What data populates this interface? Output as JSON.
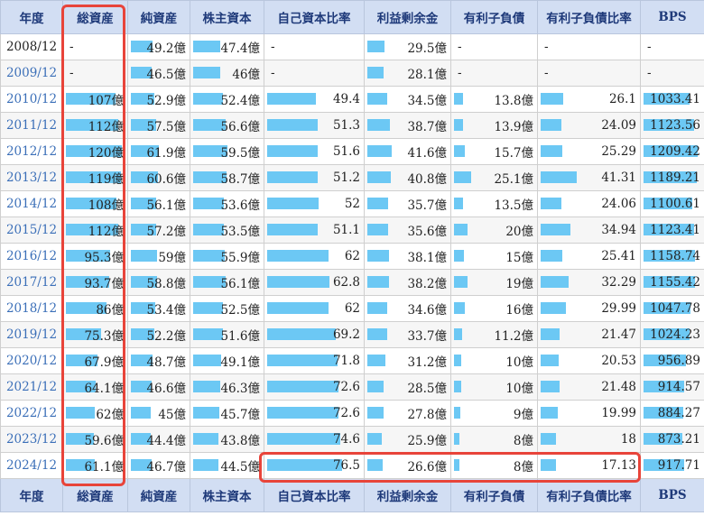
{
  "headers": [
    "年度",
    "総資産",
    "純資産",
    "株主資本",
    "自己資本比率",
    "利益剰余金",
    "有利子負債",
    "有利子負債比率",
    "BPS"
  ],
  "bar_color": "#6cc8f4",
  "highlight_color": "#e8443a",
  "rows": [
    {
      "year": "2008/12",
      "link": false,
      "cells": [
        {
          "text": "-",
          "bar": null
        },
        {
          "text": "49.2億",
          "bar": 0.41
        },
        {
          "text": "47.4億",
          "bar": 0.42
        },
        {
          "text": "-",
          "bar": null
        },
        {
          "text": "29.5億",
          "bar": 0.22
        },
        {
          "text": "-",
          "bar": null
        },
        {
          "text": "-",
          "bar": null
        },
        {
          "text": "-",
          "bar": null
        }
      ]
    },
    {
      "year": "2009/12",
      "link": true,
      "cells": [
        {
          "text": "-",
          "bar": null
        },
        {
          "text": "46.5億",
          "bar": 0.39
        },
        {
          "text": "46億",
          "bar": 0.41
        },
        {
          "text": "-",
          "bar": null
        },
        {
          "text": "28.1億",
          "bar": 0.21
        },
        {
          "text": "-",
          "bar": null
        },
        {
          "text": "-",
          "bar": null
        },
        {
          "text": "-",
          "bar": null
        }
      ]
    },
    {
      "year": "2010/12",
      "link": true,
      "cells": [
        {
          "text": "107億",
          "bar": 0.89
        },
        {
          "text": "52.9億",
          "bar": 0.44
        },
        {
          "text": "52.4億",
          "bar": 0.46
        },
        {
          "text": "49.4",
          "bar": 0.53
        },
        {
          "text": "34.5億",
          "bar": 0.26
        },
        {
          "text": "13.8億",
          "bar": 0.12
        },
        {
          "text": "26.1",
          "bar": 0.24
        },
        {
          "text": "1033.41",
          "bar": 0.84
        }
      ]
    },
    {
      "year": "2011/12",
      "link": true,
      "cells": [
        {
          "text": "112億",
          "bar": 0.93
        },
        {
          "text": "57.5億",
          "bar": 0.48
        },
        {
          "text": "56.6億",
          "bar": 0.5
        },
        {
          "text": "51.3",
          "bar": 0.55
        },
        {
          "text": "38.7億",
          "bar": 0.29
        },
        {
          "text": "13.9億",
          "bar": 0.12
        },
        {
          "text": "24.09",
          "bar": 0.22
        },
        {
          "text": "1123.56",
          "bar": 0.91
        }
      ]
    },
    {
      "year": "2012/12",
      "link": true,
      "cells": [
        {
          "text": "120億",
          "bar": 1.0
        },
        {
          "text": "61.9億",
          "bar": 0.52
        },
        {
          "text": "59.5億",
          "bar": 0.53
        },
        {
          "text": "51.6",
          "bar": 0.55
        },
        {
          "text": "41.6億",
          "bar": 0.31
        },
        {
          "text": "15.7億",
          "bar": 0.14
        },
        {
          "text": "25.29",
          "bar": 0.23
        },
        {
          "text": "1209.42",
          "bar": 0.98
        }
      ]
    },
    {
      "year": "2013/12",
      "link": true,
      "cells": [
        {
          "text": "119億",
          "bar": 0.99
        },
        {
          "text": "60.6億",
          "bar": 0.51
        },
        {
          "text": "58.7億",
          "bar": 0.52
        },
        {
          "text": "51.2",
          "bar": 0.55
        },
        {
          "text": "40.8億",
          "bar": 0.3
        },
        {
          "text": "25.1億",
          "bar": 0.22
        },
        {
          "text": "41.31",
          "bar": 0.38
        },
        {
          "text": "1189.21",
          "bar": 0.96
        }
      ]
    },
    {
      "year": "2014/12",
      "link": true,
      "cells": [
        {
          "text": "108億",
          "bar": 0.9
        },
        {
          "text": "56.1億",
          "bar": 0.47
        },
        {
          "text": "53.6億",
          "bar": 0.47
        },
        {
          "text": "52",
          "bar": 0.56
        },
        {
          "text": "35.7億",
          "bar": 0.27
        },
        {
          "text": "13.5億",
          "bar": 0.12
        },
        {
          "text": "24.06",
          "bar": 0.22
        },
        {
          "text": "1100.61",
          "bar": 0.89
        }
      ]
    },
    {
      "year": "2015/12",
      "link": true,
      "cells": [
        {
          "text": "112億",
          "bar": 0.93
        },
        {
          "text": "57.2億",
          "bar": 0.48
        },
        {
          "text": "53.5億",
          "bar": 0.47
        },
        {
          "text": "51.1",
          "bar": 0.55
        },
        {
          "text": "35.6億",
          "bar": 0.27
        },
        {
          "text": "20億",
          "bar": 0.18
        },
        {
          "text": "34.94",
          "bar": 0.32
        },
        {
          "text": "1123.41",
          "bar": 0.91
        }
      ]
    },
    {
      "year": "2016/12",
      "link": true,
      "cells": [
        {
          "text": "95.3億",
          "bar": 0.79
        },
        {
          "text": "59億",
          "bar": 0.49
        },
        {
          "text": "55.9億",
          "bar": 0.49
        },
        {
          "text": "62",
          "bar": 0.67
        },
        {
          "text": "38.1億",
          "bar": 0.28
        },
        {
          "text": "15億",
          "bar": 0.13
        },
        {
          "text": "25.41",
          "bar": 0.23
        },
        {
          "text": "1158.74",
          "bar": 0.94
        }
      ]
    },
    {
      "year": "2017/12",
      "link": true,
      "cells": [
        {
          "text": "93.7億",
          "bar": 0.78
        },
        {
          "text": "58.8億",
          "bar": 0.49
        },
        {
          "text": "56.1億",
          "bar": 0.5
        },
        {
          "text": "62.8",
          "bar": 0.68
        },
        {
          "text": "38.2億",
          "bar": 0.28
        },
        {
          "text": "19億",
          "bar": 0.17
        },
        {
          "text": "32.29",
          "bar": 0.3
        },
        {
          "text": "1155.42",
          "bar": 0.94
        }
      ]
    },
    {
      "year": "2018/12",
      "link": true,
      "cells": [
        {
          "text": "86億",
          "bar": 0.72
        },
        {
          "text": "53.4億",
          "bar": 0.45
        },
        {
          "text": "52.5億",
          "bar": 0.46
        },
        {
          "text": "62",
          "bar": 0.67
        },
        {
          "text": "34.6億",
          "bar": 0.26
        },
        {
          "text": "16億",
          "bar": 0.14
        },
        {
          "text": "29.99",
          "bar": 0.27
        },
        {
          "text": "1047.78",
          "bar": 0.85
        }
      ]
    },
    {
      "year": "2019/12",
      "link": true,
      "cells": [
        {
          "text": "75.3億",
          "bar": 0.63
        },
        {
          "text": "52.2億",
          "bar": 0.44
        },
        {
          "text": "51.6億",
          "bar": 0.46
        },
        {
          "text": "69.2",
          "bar": 0.75
        },
        {
          "text": "33.7億",
          "bar": 0.25
        },
        {
          "text": "11.2億",
          "bar": 0.1
        },
        {
          "text": "21.47",
          "bar": 0.2
        },
        {
          "text": "1024.23",
          "bar": 0.83
        }
      ]
    },
    {
      "year": "2020/12",
      "link": true,
      "cells": [
        {
          "text": "67.9億",
          "bar": 0.57
        },
        {
          "text": "48.7億",
          "bar": 0.41
        },
        {
          "text": "49.1億",
          "bar": 0.43
        },
        {
          "text": "71.8",
          "bar": 0.77
        },
        {
          "text": "31.2億",
          "bar": 0.23
        },
        {
          "text": "10億",
          "bar": 0.09
        },
        {
          "text": "20.53",
          "bar": 0.19
        },
        {
          "text": "956.89",
          "bar": 0.77
        }
      ]
    },
    {
      "year": "2021/12",
      "link": true,
      "cells": [
        {
          "text": "64.1億",
          "bar": 0.53
        },
        {
          "text": "46.6億",
          "bar": 0.39
        },
        {
          "text": "46.3億",
          "bar": 0.41
        },
        {
          "text": "72.6",
          "bar": 0.78
        },
        {
          "text": "28.5億",
          "bar": 0.21
        },
        {
          "text": "10億",
          "bar": 0.09
        },
        {
          "text": "21.48",
          "bar": 0.2
        },
        {
          "text": "914.57",
          "bar": 0.74
        }
      ]
    },
    {
      "year": "2022/12",
      "link": true,
      "cells": [
        {
          "text": "62億",
          "bar": 0.52
        },
        {
          "text": "45億",
          "bar": 0.38
        },
        {
          "text": "45.7億",
          "bar": 0.4
        },
        {
          "text": "72.6",
          "bar": 0.78
        },
        {
          "text": "27.8億",
          "bar": 0.21
        },
        {
          "text": "9億",
          "bar": 0.08
        },
        {
          "text": "19.99",
          "bar": 0.18
        },
        {
          "text": "884.27",
          "bar": 0.72
        }
      ]
    },
    {
      "year": "2023/12",
      "link": true,
      "cells": [
        {
          "text": "59.6億",
          "bar": 0.5
        },
        {
          "text": "44.4億",
          "bar": 0.37
        },
        {
          "text": "43.8億",
          "bar": 0.39
        },
        {
          "text": "74.6",
          "bar": 0.8
        },
        {
          "text": "25.9億",
          "bar": 0.19
        },
        {
          "text": "8億",
          "bar": 0.07
        },
        {
          "text": "18",
          "bar": 0.16
        },
        {
          "text": "873.21",
          "bar": 0.71
        }
      ]
    },
    {
      "year": "2024/12",
      "link": true,
      "cells": [
        {
          "text": "61.1億",
          "bar": 0.51
        },
        {
          "text": "46.7億",
          "bar": 0.39
        },
        {
          "text": "44.5億",
          "bar": 0.39
        },
        {
          "text": "76.5",
          "bar": 0.82
        },
        {
          "text": "26.6億",
          "bar": 0.2
        },
        {
          "text": "8億",
          "bar": 0.07
        },
        {
          "text": "17.13",
          "bar": 0.16
        },
        {
          "text": "917.71",
          "bar": 0.74
        }
      ]
    }
  ]
}
